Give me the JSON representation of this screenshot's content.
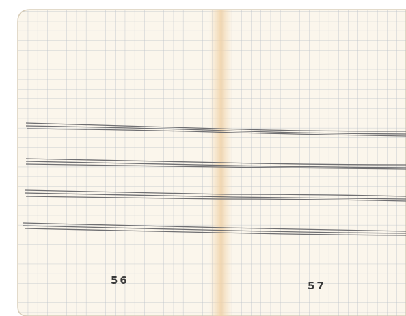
{
  "pages": [
    {
      "number": "56"
    },
    {
      "number": "57"
    }
  ]
}
